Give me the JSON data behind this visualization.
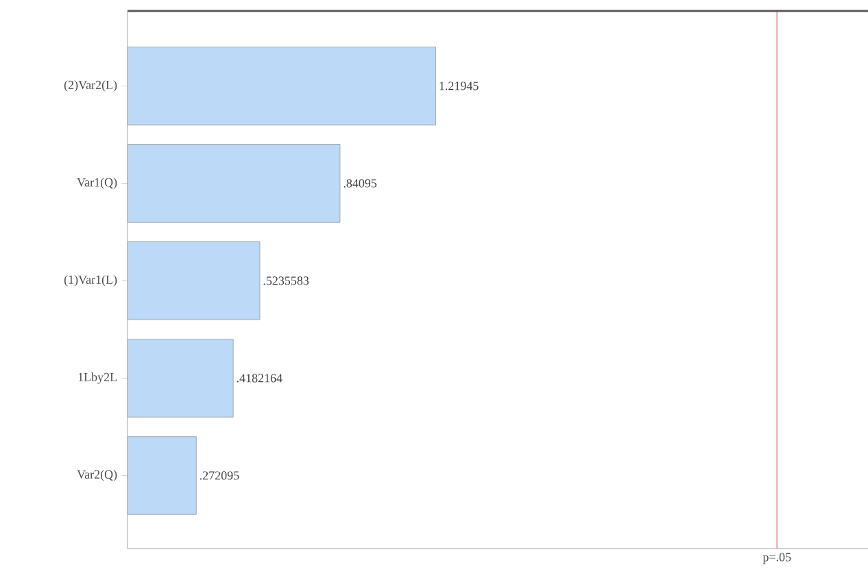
{
  "chart_data": {
    "type": "bar",
    "orientation": "horizontal",
    "categories": [
      "(2)Var2(L)",
      "Var1(Q)",
      "(1)Var1(L)",
      "1Lby2L",
      "Var2(Q)"
    ],
    "values": [
      1.21945,
      0.84095,
      0.5235583,
      0.4182164,
      0.272095
    ],
    "value_labels": [
      "1.21945",
      ".84095",
      ".5235583",
      ".4182164",
      ".272095"
    ],
    "color": "#bcdaf7",
    "xlim": [
      0,
      2.93
    ],
    "tick_labels": "y",
    "ref_lines": [
      {
        "axis": "x",
        "value": 2.57,
        "label": "p=.05",
        "color": "#e8a0a8"
      }
    ]
  }
}
